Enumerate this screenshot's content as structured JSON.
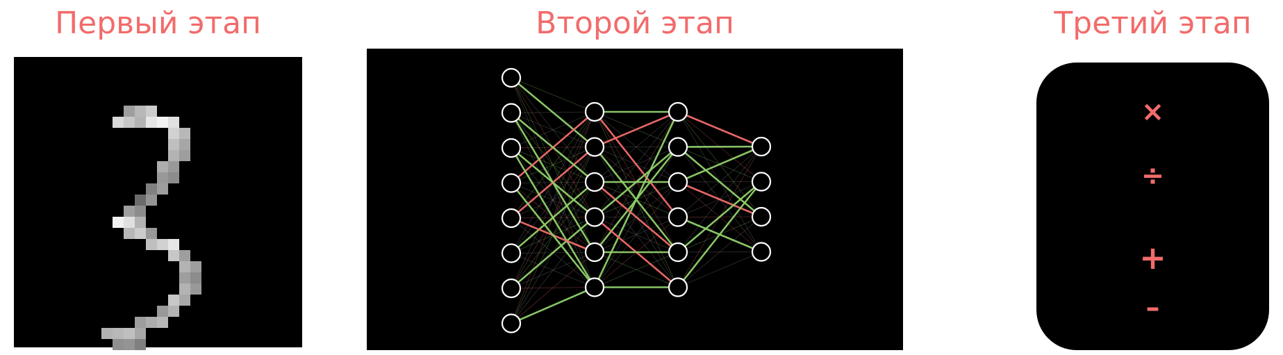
{
  "stages": [
    {
      "title": "Первый этап"
    },
    {
      "title": "Второй этап"
    },
    {
      "title": "Третий этап"
    }
  ],
  "digit_image": {
    "grid": [
      20,
      22
    ],
    "cells": [
      [
        8,
        3,
        0.62
      ],
      [
        9,
        3,
        0.72
      ],
      [
        10,
        3,
        0.8
      ],
      [
        7,
        4,
        0.85
      ],
      [
        8,
        4,
        0.78
      ],
      [
        9,
        4,
        0.7
      ],
      [
        10,
        4,
        0.9
      ],
      [
        11,
        4,
        0.95
      ],
      [
        12,
        4,
        0.88
      ],
      [
        12,
        5,
        0.82
      ],
      [
        13,
        5,
        0.72
      ],
      [
        12,
        6,
        0.75
      ],
      [
        13,
        6,
        0.65
      ],
      [
        12,
        7,
        0.7
      ],
      [
        13,
        7,
        0.62
      ],
      [
        11,
        8,
        0.68
      ],
      [
        12,
        8,
        0.6
      ],
      [
        11,
        9,
        0.6
      ],
      [
        12,
        9,
        0.55
      ],
      [
        10,
        10,
        0.5
      ],
      [
        11,
        10,
        0.62
      ],
      [
        9,
        11,
        0.42
      ],
      [
        10,
        11,
        0.58
      ],
      [
        8,
        12,
        0.62
      ],
      [
        9,
        12,
        0.55
      ],
      [
        7,
        13,
        0.95
      ],
      [
        8,
        13,
        0.88
      ],
      [
        9,
        13,
        0.7
      ],
      [
        8,
        14,
        0.72
      ],
      [
        9,
        14,
        0.8
      ],
      [
        10,
        14,
        0.6
      ],
      [
        10,
        15,
        0.75
      ],
      [
        11,
        15,
        0.82
      ],
      [
        12,
        15,
        0.9
      ],
      [
        12,
        16,
        0.78
      ],
      [
        13,
        16,
        0.62
      ],
      [
        13,
        17,
        0.7
      ],
      [
        14,
        17,
        0.62
      ],
      [
        13,
        18,
        0.62
      ],
      [
        14,
        18,
        0.55
      ],
      [
        13,
        19,
        0.7
      ],
      [
        14,
        19,
        0.6
      ],
      [
        12,
        20,
        0.78
      ],
      [
        13,
        20,
        0.66
      ],
      [
        11,
        21,
        0.6
      ],
      [
        12,
        21,
        0.7
      ],
      [
        9,
        22,
        0.62
      ],
      [
        10,
        22,
        0.68
      ],
      [
        11,
        22,
        0.72
      ],
      [
        6,
        23,
        0.7
      ],
      [
        7,
        23,
        0.72
      ],
      [
        8,
        23,
        0.75
      ],
      [
        9,
        23,
        0.66
      ],
      [
        7,
        24,
        0.56
      ],
      [
        8,
        24,
        0.58
      ],
      [
        9,
        24,
        0.5
      ]
    ]
  },
  "network": {
    "layers": [
      8,
      6,
      6,
      4
    ],
    "colors": {
      "node_stroke": "#ffffff",
      "positive": "#8fcf6a",
      "negative": "#f26b6b",
      "weak": "#8a8a8a"
    },
    "strong_edges": [
      [
        0,
        0,
        1,
        1,
        "positive"
      ],
      [
        0,
        2,
        1,
        3,
        "positive"
      ],
      [
        0,
        3,
        1,
        0,
        "negative"
      ],
      [
        0,
        4,
        1,
        1,
        "negative"
      ],
      [
        0,
        1,
        1,
        4,
        "positive"
      ],
      [
        0,
        2,
        1,
        5,
        "positive"
      ],
      [
        0,
        5,
        1,
        2,
        "positive"
      ],
      [
        0,
        7,
        1,
        5,
        "positive"
      ],
      [
        0,
        6,
        1,
        3,
        "positive"
      ],
      [
        0,
        4,
        1,
        4,
        "negative"
      ],
      [
        0,
        1,
        1,
        2,
        "positive"
      ],
      [
        0,
        3,
        1,
        5,
        "positive"
      ],
      [
        1,
        0,
        2,
        0,
        "positive"
      ],
      [
        1,
        1,
        2,
        0,
        "negative"
      ],
      [
        1,
        0,
        2,
        3,
        "negative"
      ],
      [
        1,
        2,
        2,
        2,
        "positive"
      ],
      [
        1,
        5,
        2,
        0,
        "positive"
      ],
      [
        1,
        4,
        2,
        1,
        "positive"
      ],
      [
        1,
        1,
        2,
        4,
        "positive"
      ],
      [
        1,
        3,
        2,
        5,
        "negative"
      ],
      [
        1,
        5,
        2,
        5,
        "positive"
      ],
      [
        1,
        2,
        2,
        4,
        "negative"
      ],
      [
        1,
        4,
        2,
        4,
        "positive"
      ],
      [
        1,
        3,
        2,
        1,
        "positive"
      ],
      [
        2,
        1,
        3,
        0,
        "positive"
      ],
      [
        2,
        1,
        3,
        2,
        "positive"
      ],
      [
        2,
        2,
        3,
        2,
        "negative"
      ],
      [
        2,
        4,
        3,
        1,
        "positive"
      ],
      [
        2,
        3,
        3,
        3,
        "positive"
      ],
      [
        2,
        0,
        3,
        0,
        "negative"
      ],
      [
        2,
        5,
        3,
        1,
        "positive"
      ],
      [
        2,
        2,
        3,
        0,
        "positive"
      ]
    ]
  },
  "operations": [
    {
      "symbol": "×",
      "icon": "multiply-icon"
    },
    {
      "symbol": "÷",
      "icon": "divide-icon"
    },
    {
      "symbol": "+",
      "icon": "plus-icon"
    },
    {
      "symbol": "–",
      "icon": "minus-icon"
    }
  ]
}
